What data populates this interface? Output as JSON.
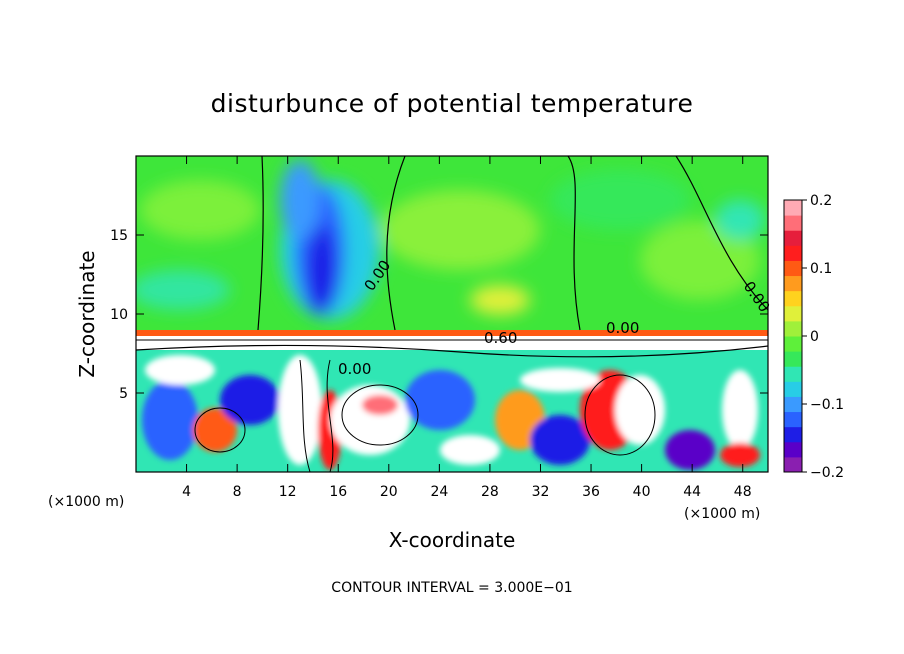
{
  "chart_data": {
    "type": "heatmap",
    "title": "disturbunce of potential temperature",
    "xlabel": "X-coordinate",
    "ylabel": "Z-coordinate",
    "x_unit_label_left": "(×1000 m)",
    "x_unit_label_right": "(×1000 m)",
    "xlim": [
      0,
      50
    ],
    "ylim": [
      0,
      20
    ],
    "x_ticks": [
      4,
      8,
      12,
      16,
      20,
      24,
      28,
      32,
      36,
      40,
      44,
      48
    ],
    "y_ticks": [
      5,
      10,
      15
    ],
    "colorbar": {
      "range": [
        -0.2,
        0.2
      ],
      "ticks": [
        {
          "value": 0.2,
          "label": "0.2"
        },
        {
          "value": 0.1,
          "label": "0.1"
        },
        {
          "value": 0,
          "label": "0"
        },
        {
          "value": -0.1,
          "label": "−0.1"
        },
        {
          "value": -0.2,
          "label": "−0.2"
        }
      ],
      "colors": [
        "#8a1fb0",
        "#5a00c8",
        "#1e1ee6",
        "#2a62ff",
        "#3a9aff",
        "#28cde6",
        "#30e6b4",
        "#36e85a",
        "#5ef03a",
        "#a0f03a",
        "#e0f03a",
        "#ffd21e",
        "#ff9b1e",
        "#ff5a14",
        "#ff1e1e",
        "#e61e3c",
        "#ff6e78",
        "#ffaab4"
      ]
    },
    "contour_labels": [
      "0.00",
      "0.00",
      "0.00",
      "0.60",
      "0.00",
      "0.00"
    ],
    "contour_interval_text": "CONTOUR INTERVAL = 3.000E−01",
    "grid": false
  }
}
